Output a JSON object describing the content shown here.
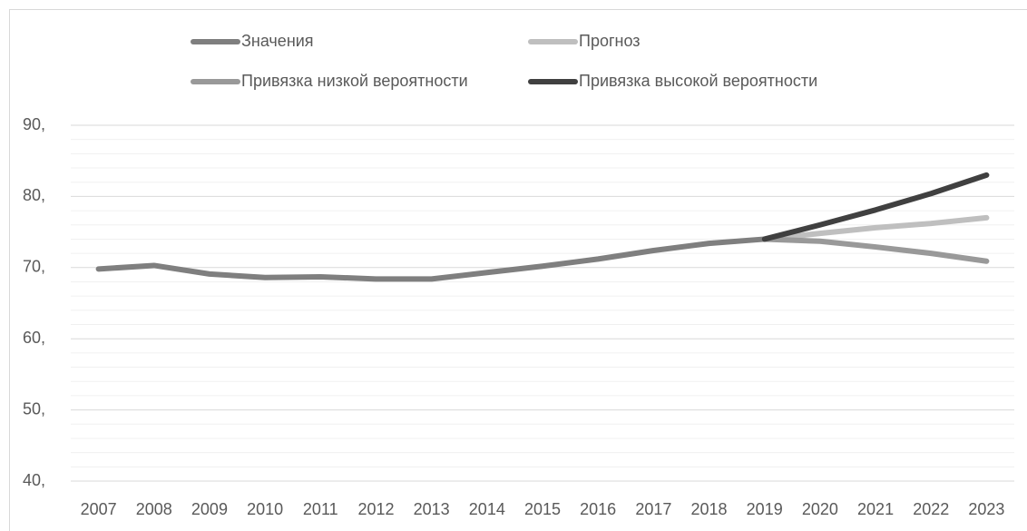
{
  "chart_data": {
    "type": "line",
    "categories": [
      "2007",
      "2008",
      "2009",
      "2010",
      "2011",
      "2012",
      "2013",
      "2014",
      "2015",
      "2016",
      "2017",
      "2018",
      "2019",
      "2020",
      "2021",
      "2022",
      "2023"
    ],
    "series": [
      {
        "name": "Значения",
        "color": "#7f7f7f",
        "values": [
          69.8,
          70.3,
          69.1,
          68.6,
          68.7,
          68.4,
          68.4,
          69.3,
          70.2,
          71.2,
          72.4,
          73.4,
          74.0,
          null,
          null,
          null,
          null
        ]
      },
      {
        "name": "Прогноз",
        "color": "#bfbfbf",
        "values": [
          null,
          null,
          null,
          null,
          null,
          null,
          null,
          null,
          null,
          null,
          null,
          null,
          74.0,
          74.8,
          75.6,
          76.2,
          77.0
        ]
      },
      {
        "name": "Привязка низкой вероятности",
        "color": "#999999",
        "values": [
          null,
          null,
          null,
          null,
          null,
          null,
          null,
          null,
          null,
          null,
          null,
          null,
          74.0,
          73.7,
          72.9,
          72.0,
          70.9
        ]
      },
      {
        "name": "Привязка высокой вероятности",
        "color": "#404040",
        "values": [
          null,
          null,
          null,
          null,
          null,
          null,
          null,
          null,
          null,
          null,
          null,
          null,
          74.0,
          76.0,
          78.1,
          80.4,
          83.0
        ]
      }
    ],
    "ylim": [
      40,
      90
    ],
    "yticks": [
      {
        "value": 40,
        "label": "40,"
      },
      {
        "value": 50,
        "label": "50,"
      },
      {
        "value": 60,
        "label": "60,"
      },
      {
        "value": 70,
        "label": "70,"
      },
      {
        "value": 80,
        "label": "80,"
      },
      {
        "value": 90,
        "label": "90,"
      }
    ],
    "grid": true,
    "minor_grid": true,
    "legend": "top"
  }
}
